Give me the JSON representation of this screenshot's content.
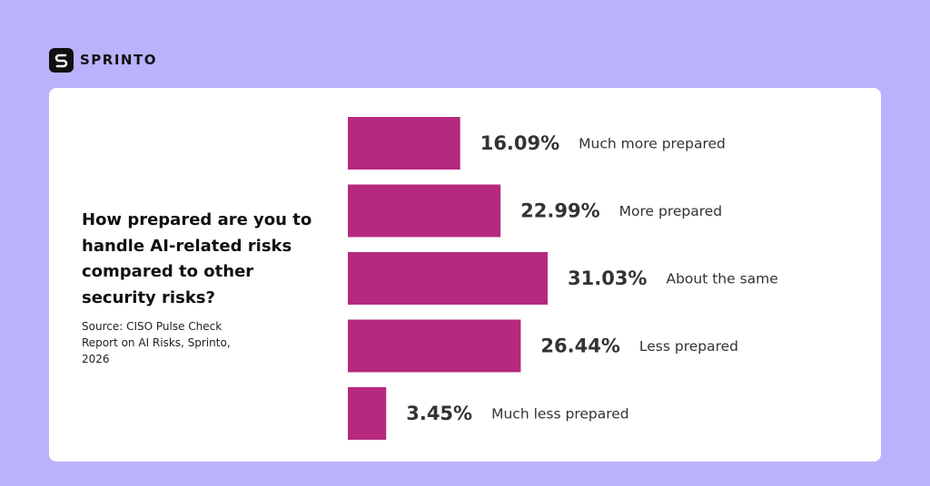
{
  "brand": "SPRINTO",
  "chart_data": {
    "type": "bar",
    "orientation": "horizontal",
    "title": "How prepared are you to handle AI-related risks compared to other security risks?",
    "source": "Source: CISO Pulse Check Report on AI Risks, Sprinto, 2026",
    "categories": [
      "Much more prepared",
      "More prepared",
      "About the same",
      "Less prepared",
      "Much less prepared"
    ],
    "values": [
      16.09,
      22.99,
      31.03,
      26.44,
      3.45
    ],
    "value_labels": [
      "16.09%",
      "22.99%",
      "31.03%",
      "26.44%",
      "3.45%"
    ],
    "color": "#b5297e"
  }
}
